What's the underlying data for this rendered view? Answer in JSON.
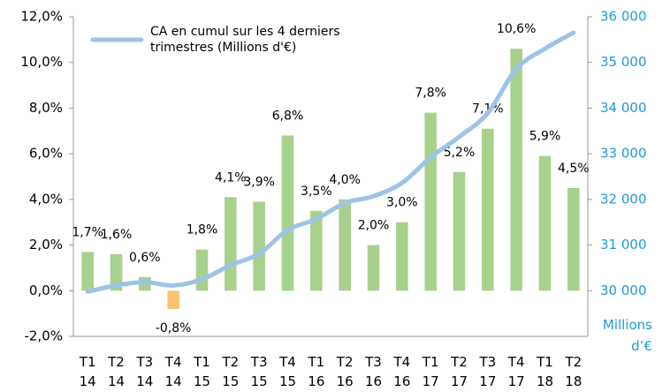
{
  "chart_data": {
    "type": "bar",
    "categories": [
      "T1 14",
      "T2 14",
      "T3 14",
      "T4 14",
      "T1 15",
      "T2 15",
      "T3 15",
      "T4 15",
      "T1 16",
      "T2 16",
      "T3 16",
      "T4 16",
      "T1 17",
      "T2 17",
      "T3 17",
      "T4 17",
      "T1 18",
      "T2 18"
    ],
    "series": [
      {
        "type": "bar",
        "color": "#a9d18e",
        "negative_color": "#f8c471",
        "values": [
          1.7,
          1.6,
          0.6,
          -0.8,
          1.8,
          4.1,
          3.9,
          6.8,
          3.5,
          4.0,
          2.0,
          3.0,
          7.8,
          5.2,
          7.1,
          10.6,
          5.9,
          4.5
        ],
        "value_labels": [
          "1,7%",
          "1,6%",
          "0,6%",
          "-0,8%",
          "1,8%",
          "4,1%",
          "3,9%",
          "6,8%",
          "3,5%",
          "4,0%",
          "2,0%",
          "3,0%",
          "7,8%",
          "5,2%",
          "7,1%",
          "10,6%",
          "5,9%",
          "4,5%"
        ]
      },
      {
        "type": "line",
        "axis": "y2",
        "name": "CA en cumul sur les 4 derniers trimestres (Millions d'€)",
        "color": "#9dc3e6",
        "values": [
          29980,
          30115,
          30190,
          30115,
          30250,
          30560,
          30810,
          31330,
          31570,
          31920,
          32070,
          32360,
          32920,
          33370,
          33890,
          34860,
          35300,
          35650
        ]
      }
    ],
    "ylim": [
      -2,
      12
    ],
    "yticks": [
      {
        "value": -2,
        "label": "-2,0%"
      },
      {
        "value": 0,
        "label": "0,0%"
      },
      {
        "value": 2,
        "label": "2,0%"
      },
      {
        "value": 4,
        "label": "4,0%"
      },
      {
        "value": 6,
        "label": "6,0%"
      },
      {
        "value": 8,
        "label": "8,0%"
      },
      {
        "value": 10,
        "label": "10,0%"
      },
      {
        "value": 12,
        "label": "12,0%"
      }
    ],
    "y2lim": [
      30000,
      36000
    ],
    "y2ticks": [
      {
        "value": 30000,
        "label": "30 000"
      },
      {
        "value": 31000,
        "label": "31 000"
      },
      {
        "value": 32000,
        "label": "32 000"
      },
      {
        "value": 33000,
        "label": "33 000"
      },
      {
        "value": 34000,
        "label": "34 000"
      },
      {
        "value": 35000,
        "label": "35 000"
      },
      {
        "value": 36000,
        "label": "36 000"
      }
    ],
    "y2_label": "Millions d’€",
    "legend": "top-left"
  }
}
